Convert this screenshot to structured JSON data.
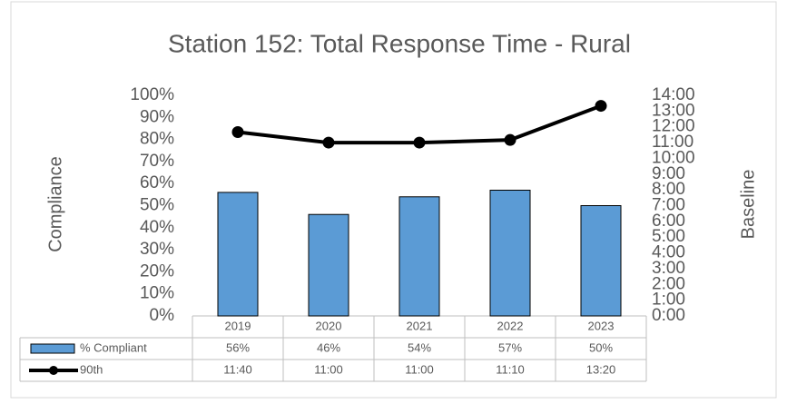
{
  "chart_data": {
    "type": "bar",
    "title": "Station 152: Total Response Time - Rural",
    "y_label": "Compliance",
    "y2_label": "Baseline",
    "categories": [
      "2019",
      "2020",
      "2021",
      "2022",
      "2023"
    ],
    "series": [
      {
        "name": "% Compliant",
        "type": "bar",
        "color": "#5b9bd5",
        "values": [
          56,
          46,
          54,
          57,
          50
        ],
        "value_labels": [
          "56%",
          "46%",
          "54%",
          "57%",
          "50%"
        ]
      },
      {
        "name": "90th",
        "type": "line",
        "axis": "y2",
        "color": "#000000",
        "values": [
          700,
          660,
          660,
          670,
          800
        ],
        "value_labels": [
          "11:40",
          "11:00",
          "11:00",
          "11:10",
          "13:20"
        ]
      }
    ],
    "ylim": [
      0,
      100
    ],
    "yticks": [
      {
        "value": 0,
        "label": "0%"
      },
      {
        "value": 10,
        "label": "10%"
      },
      {
        "value": 20,
        "label": "20%"
      },
      {
        "value": 30,
        "label": "30%"
      },
      {
        "value": 40,
        "label": "40%"
      },
      {
        "value": 50,
        "label": "50%"
      },
      {
        "value": 60,
        "label": "60%"
      },
      {
        "value": 70,
        "label": "70%"
      },
      {
        "value": 80,
        "label": "80%"
      },
      {
        "value": 90,
        "label": "90%"
      },
      {
        "value": 100,
        "label": "100%"
      }
    ],
    "y2lim": [
      0,
      840
    ],
    "y2ticks": [
      {
        "value": 0,
        "label": "0:00"
      },
      {
        "value": 60,
        "label": "1:00"
      },
      {
        "value": 120,
        "label": "2:00"
      },
      {
        "value": 180,
        "label": "3:00"
      },
      {
        "value": 240,
        "label": "4:00"
      },
      {
        "value": 300,
        "label": "5:00"
      },
      {
        "value": 360,
        "label": "6:00"
      },
      {
        "value": 420,
        "label": "7:00"
      },
      {
        "value": 480,
        "label": "8:00"
      },
      {
        "value": 540,
        "label": "9:00"
      },
      {
        "value": 600,
        "label": "10:00"
      },
      {
        "value": 660,
        "label": "11:00"
      },
      {
        "value": 720,
        "label": "12:00"
      },
      {
        "value": 780,
        "label": "13:00"
      },
      {
        "value": 840,
        "label": "14:00"
      }
    ],
    "grid": false
  }
}
